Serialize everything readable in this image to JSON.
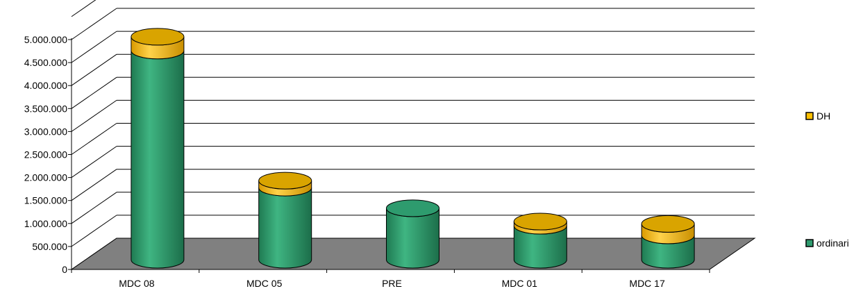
{
  "chart_data": {
    "type": "bar",
    "stacked": true,
    "title": "",
    "xlabel": "",
    "ylabel": "",
    "categories": [
      "MDC 08",
      "MDC 05",
      "PRE",
      "MDC 01",
      "MDC 17"
    ],
    "series": [
      {
        "name": "ordinari",
        "values": [
          4550000,
          1570000,
          1120000,
          740000,
          530000
        ],
        "color": "#2e9b6e"
      },
      {
        "name": "DH",
        "values": [
          300000,
          150000,
          0,
          90000,
          250000
        ],
        "color": "#ffc000"
      }
    ],
    "ylim": [
      0,
      5000000
    ],
    "yticks": [
      0,
      500000,
      1000000,
      1500000,
      2000000,
      2500000,
      3000000,
      3500000,
      4000000,
      4500000,
      5000000
    ],
    "ytick_labels": [
      "0",
      "500.000",
      "1.000.000",
      "1.500.000",
      "2.000.000",
      "2.500.000",
      "3.000.000",
      "3.500.000",
      "4.000.000",
      "4.500.000",
      "5.000.000"
    ],
    "grid": true,
    "legend_position": "right",
    "floor_color": "#808080",
    "style": "3d-cylinder"
  }
}
